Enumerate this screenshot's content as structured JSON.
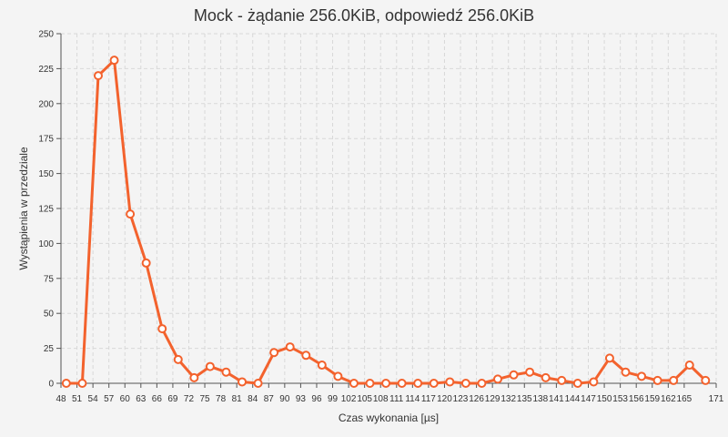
{
  "chart_data": {
    "type": "line",
    "title": "Mock - żądanie 256.0KiB, odpowiedź 256.0KiB",
    "xlabel": "Czas wykonania [µs]",
    "ylabel": "Wystąpienia w przedziale",
    "xlim": [
      48,
      171
    ],
    "ylim": [
      0,
      250
    ],
    "grid": true,
    "x_ticks": [
      48,
      51,
      54,
      57,
      60,
      63,
      66,
      69,
      72,
      75,
      78,
      81,
      84,
      87,
      90,
      93,
      96,
      99,
      102,
      105,
      108,
      111,
      114,
      117,
      120,
      123,
      126,
      129,
      132,
      135,
      138,
      141,
      144,
      147,
      150,
      153,
      156,
      159,
      162,
      165,
      171
    ],
    "y_ticks": [
      0,
      25,
      50,
      75,
      100,
      125,
      150,
      175,
      200,
      225,
      250
    ],
    "colors": {
      "series": "#f3622d",
      "background": "#f4f4f4",
      "grid": "#d8d8d8"
    },
    "series": [
      {
        "x": [
          49,
          52,
          55,
          58,
          61,
          64,
          67,
          70,
          73,
          76,
          79,
          82,
          85,
          88,
          91,
          94,
          97,
          100,
          103,
          106,
          109,
          112,
          115,
          118,
          121,
          124,
          127,
          130,
          133,
          136,
          139,
          142,
          145,
          148,
          151,
          154,
          157,
          160,
          163,
          166,
          169
        ],
        "values": [
          0,
          0,
          220,
          231,
          121,
          86,
          39,
          17,
          4,
          12,
          8,
          1,
          0,
          22,
          26,
          20,
          13,
          5,
          0,
          0,
          0,
          0,
          0,
          0,
          1,
          0,
          0,
          3,
          6,
          8,
          4,
          2,
          0,
          1,
          18,
          8,
          5,
          2,
          2,
          13,
          2
        ]
      }
    ]
  }
}
